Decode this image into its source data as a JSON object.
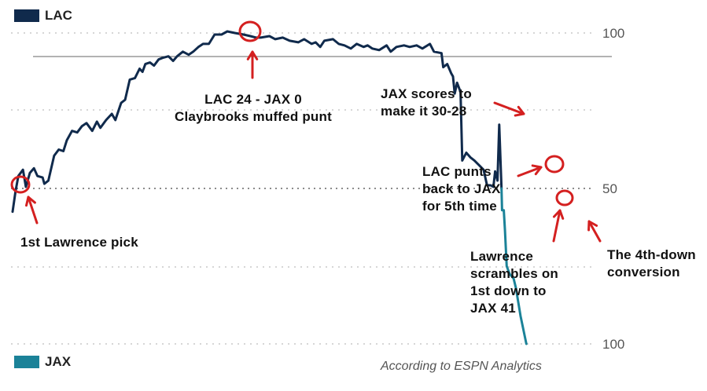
{
  "chart_data": {
    "type": "line",
    "teams": [
      {
        "name": "LAC",
        "color": "#102A4C"
      },
      {
        "name": "JAX",
        "color": "#1B8298"
      }
    ],
    "y_ticks": {
      "top": "100",
      "middle": "50",
      "bottom": "100"
    },
    "x_range": [
      0,
      100
    ],
    "y_range": [
      -100,
      100
    ],
    "series": [
      {
        "name": "LAC",
        "points": [
          [
            0,
            -15
          ],
          [
            0.5,
            -2
          ],
          [
            1,
            8
          ],
          [
            1.8,
            12
          ],
          [
            2.3,
            1
          ],
          [
            3,
            10
          ],
          [
            3.7,
            13
          ],
          [
            4.3,
            8
          ],
          [
            5.2,
            7
          ],
          [
            5.5,
            3
          ],
          [
            6.2,
            5
          ],
          [
            7.2,
            21
          ],
          [
            8,
            25
          ],
          [
            8.8,
            24
          ],
          [
            9.4,
            31
          ],
          [
            10.3,
            37
          ],
          [
            11.2,
            36
          ],
          [
            12,
            40
          ],
          [
            12.8,
            42
          ],
          [
            13.8,
            37
          ],
          [
            14.6,
            43
          ],
          [
            15.2,
            39
          ],
          [
            16.2,
            44
          ],
          [
            17.2,
            48
          ],
          [
            17.8,
            44
          ],
          [
            18.8,
            55
          ],
          [
            19.5,
            57
          ],
          [
            20.3,
            70
          ],
          [
            21.2,
            71
          ],
          [
            22,
            77
          ],
          [
            22.5,
            75
          ],
          [
            23,
            80
          ],
          [
            23.8,
            81
          ],
          [
            24.5,
            79
          ],
          [
            25.3,
            83
          ],
          [
            26,
            84
          ],
          [
            27,
            85
          ],
          [
            27.8,
            82
          ],
          [
            28.5,
            85
          ],
          [
            29.5,
            88
          ],
          [
            30.5,
            86
          ],
          [
            31.3,
            88
          ],
          [
            32.2,
            91
          ],
          [
            33,
            93
          ],
          [
            34,
            93
          ],
          [
            35,
            99
          ],
          [
            36.2,
            99
          ],
          [
            37.2,
            101
          ],
          [
            38.5,
            100
          ],
          [
            40,
            99
          ],
          [
            41.2,
            98
          ],
          [
            42.2,
            97
          ],
          [
            43,
            97
          ],
          [
            44.5,
            98
          ],
          [
            45.5,
            96
          ],
          [
            46.8,
            97
          ],
          [
            48,
            95
          ],
          [
            49.5,
            94
          ],
          [
            50.5,
            96
          ],
          [
            51.8,
            93
          ],
          [
            52.5,
            94
          ],
          [
            53.3,
            91
          ],
          [
            54,
            95
          ],
          [
            55.5,
            96
          ],
          [
            56.5,
            93
          ],
          [
            57.5,
            92
          ],
          [
            58.6,
            90
          ],
          [
            59.6,
            93
          ],
          [
            60.8,
            91
          ],
          [
            61.5,
            92
          ],
          [
            62.3,
            90
          ],
          [
            63.5,
            89
          ],
          [
            64.8,
            92
          ],
          [
            65.5,
            88
          ],
          [
            66.5,
            91
          ],
          [
            67.8,
            92
          ],
          [
            68.8,
            91
          ],
          [
            70,
            92
          ],
          [
            71,
            90
          ],
          [
            72.3,
            93
          ],
          [
            73,
            88
          ],
          [
            74.3,
            87
          ],
          [
            74.6,
            78
          ],
          [
            75.3,
            80
          ],
          [
            76,
            74
          ],
          [
            76.3,
            72
          ],
          [
            76.6,
            61
          ],
          [
            77,
            68
          ],
          [
            77.6,
            62
          ],
          [
            77.9,
            18
          ],
          [
            78.6,
            23
          ],
          [
            79.3,
            20
          ],
          [
            80,
            18
          ],
          [
            80.8,
            15
          ],
          [
            81.6,
            12
          ],
          [
            82.2,
            2
          ],
          [
            82.8,
            2
          ],
          [
            83.3,
            1
          ],
          [
            83.6,
            11
          ],
          [
            84,
            5
          ],
          [
            84.3,
            41
          ],
          [
            84.7,
            0
          ]
        ]
      },
      {
        "name": "JAX",
        "points": [
          [
            84.7,
            0
          ],
          [
            84.8,
            -14
          ],
          [
            85.1,
            -14
          ],
          [
            85.3,
            -27
          ],
          [
            85.6,
            -50
          ],
          [
            86.1,
            -55
          ],
          [
            86.8,
            -58
          ],
          [
            87.2,
            -64
          ],
          [
            88,
            -82
          ],
          [
            89,
            -100
          ]
        ]
      }
    ],
    "annotations": [
      {
        "text": "1st Lawrence pick"
      },
      {
        "text": "LAC 24 - JAX 0\nClaybrooks muffed punt"
      },
      {
        "text": "JAX scores to\nmake it 30-28"
      },
      {
        "text": "LAC punts\nback to JAX\nfor 5th time"
      },
      {
        "text": "Lawrence\nscrambles on\n1st down to\nJAX 41"
      },
      {
        "text": "The 4th-down\nconversion"
      }
    ],
    "source": "According to ESPN Analytics"
  }
}
